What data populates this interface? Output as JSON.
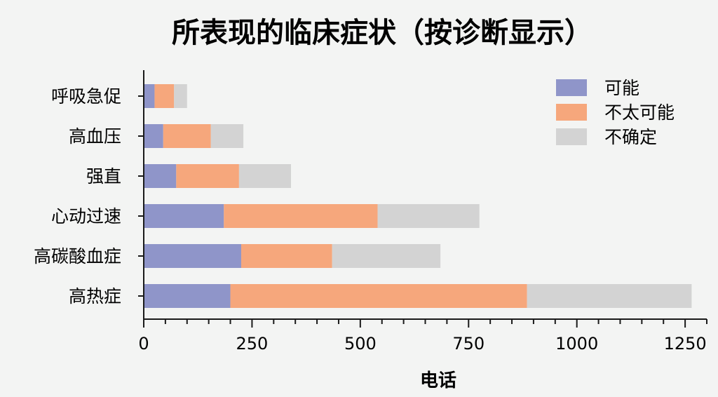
{
  "chart_data": {
    "type": "bar",
    "orientation": "horizontal",
    "stacked": true,
    "title": "所表现的临床症状（按诊断显示）",
    "xlabel": "电话",
    "ylabel": "",
    "categories": [
      "呼吸急促",
      "高血压",
      "强直",
      "心动过速",
      "高碳酸血症",
      "高热症"
    ],
    "series": [
      {
        "name": "可能",
        "color": "#8f95c9",
        "values": [
          25,
          45,
          75,
          185,
          225,
          200
        ]
      },
      {
        "name": "不太可能",
        "color": "#f6a77c",
        "values": [
          45,
          110,
          145,
          355,
          210,
          685
        ]
      },
      {
        "name": "不确定",
        "color": "#d3d3d3",
        "values": [
          30,
          75,
          120,
          235,
          250,
          380
        ]
      }
    ],
    "xlim": [
      0,
      1300
    ],
    "xticks": [
      "0",
      "250",
      "500",
      "750",
      "1000",
      "1250"
    ],
    "legend_position": "top-right",
    "grid": false
  }
}
